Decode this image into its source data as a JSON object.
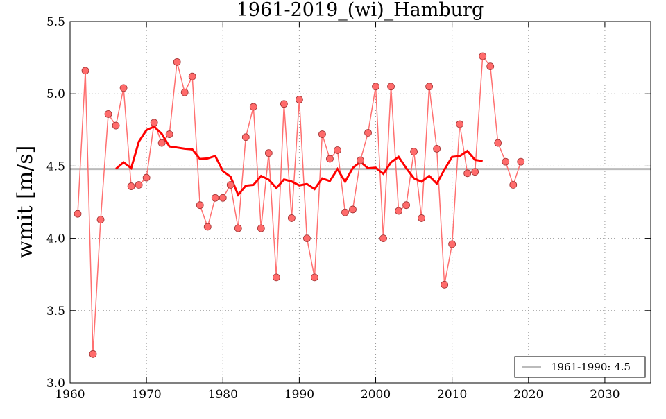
{
  "chart_data": {
    "type": "line",
    "title": "1961-2019_(wi)_Hamburg",
    "xlabel": "",
    "ylabel": "wmit [m/s]",
    "xlim": [
      1960,
      2036
    ],
    "ylim": [
      3.0,
      5.5
    ],
    "xticks": [
      "1960",
      "1970",
      "1980",
      "1990",
      "2000",
      "2010",
      "2020",
      "2030"
    ],
    "yticks": [
      "3.0",
      "3.5",
      "4.0",
      "4.5",
      "5.0",
      "5.5"
    ],
    "grid": true,
    "x": [
      1961,
      1962,
      1963,
      1964,
      1965,
      1966,
      1967,
      1968,
      1969,
      1970,
      1971,
      1972,
      1973,
      1974,
      1975,
      1976,
      1977,
      1978,
      1979,
      1980,
      1981,
      1982,
      1983,
      1984,
      1985,
      1986,
      1987,
      1988,
      1989,
      1990,
      1991,
      1992,
      1993,
      1994,
      1995,
      1996,
      1997,
      1998,
      1999,
      2000,
      2001,
      2002,
      2003,
      2004,
      2005,
      2006,
      2007,
      2008,
      2009,
      2010,
      2011,
      2012,
      2013,
      2014,
      2015,
      2016,
      2017,
      2018,
      2019
    ],
    "series": [
      {
        "name": "wmit",
        "color": "#ff0000",
        "values": [
          4.17,
          5.16,
          3.2,
          4.13,
          4.86,
          4.78,
          5.04,
          4.36,
          4.37,
          4.42,
          4.8,
          4.66,
          4.72,
          5.22,
          5.01,
          5.12,
          4.23,
          4.08,
          4.28,
          4.28,
          4.37,
          4.07,
          4.7,
          4.91,
          4.07,
          4.59,
          3.73,
          4.93,
          4.14,
          4.96,
          4.0,
          3.73,
          4.72,
          4.55,
          4.61,
          4.18,
          4.2,
          4.54,
          4.73,
          5.05,
          4.0,
          5.05,
          4.19,
          4.23,
          4.6,
          4.14,
          5.05,
          4.62,
          3.68,
          3.96,
          4.79,
          4.45,
          4.46,
          5.26,
          5.19,
          4.66,
          4.53,
          4.37,
          4.53
        ]
      },
      {
        "name": "11-year moving mean",
        "color": "#ff0000",
        "window": 11
      }
    ],
    "reference": {
      "label": "1961-1990: 4.5",
      "value": 4.48,
      "color": "#bbbbbb"
    },
    "legend_position": "bottom-right"
  }
}
